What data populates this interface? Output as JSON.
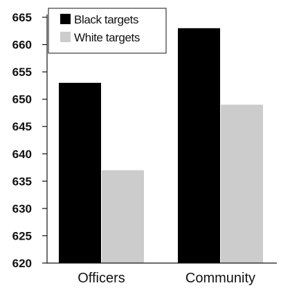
{
  "chart_data": {
    "type": "bar",
    "title": "",
    "xlabel": "",
    "ylabel": "",
    "categories": [
      "Officers",
      "Community"
    ],
    "series": [
      {
        "name": "Black targets",
        "values": [
          653,
          663
        ],
        "color": "#000000"
      },
      {
        "name": "White targets",
        "values": [
          637,
          649
        ],
        "color": "#cccccc"
      }
    ],
    "ylim": [
      620,
      665
    ],
    "yticks": [
      620,
      625,
      630,
      635,
      640,
      645,
      650,
      655,
      660,
      665
    ],
    "grid": false,
    "legend_position": "top-left"
  }
}
